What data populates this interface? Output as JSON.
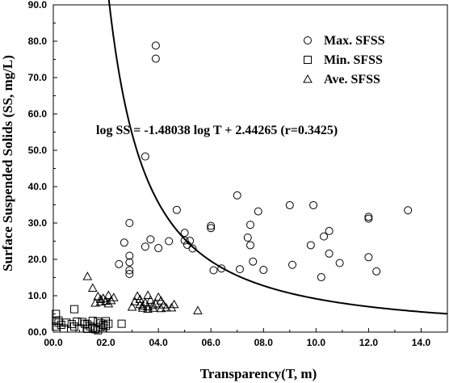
{
  "chart_data": {
    "type": "scatter",
    "xlabel": "Transparency(T, m)",
    "ylabel": "Surface Suspended Solids (SS, mg/L)",
    "xlim": [
      0,
      15
    ],
    "ylim": [
      0,
      90
    ],
    "x_ticks": [
      "00.0",
      "02.0",
      "04.0",
      "06.0",
      "08.0",
      "10.0",
      "12.0",
      "14.0"
    ],
    "y_ticks": [
      "00.0",
      "10.0",
      "20.0",
      "30.0",
      "40.0",
      "50.0",
      "60.0",
      "70.0",
      "80.0",
      "90.0"
    ],
    "grid": false,
    "legend_position": "top-right",
    "annotation": "log SS = -1.48038 log T + 2.44265 (r=0.3425)",
    "fit": {
      "slope": -1.48038,
      "intercept": 2.44265,
      "x_start": 0.1,
      "x_end": 15
    },
    "series": [
      {
        "name": "Max. SFSS",
        "marker": "circle",
        "points": [
          [
            3.9,
            78.8
          ],
          [
            3.9,
            75.2
          ],
          [
            3.5,
            48.3
          ],
          [
            7.0,
            37.6
          ],
          [
            4.7,
            33.6
          ],
          [
            2.9,
            30.0
          ],
          [
            6.0,
            29.2
          ],
          [
            6.0,
            28.6
          ],
          [
            7.5,
            29.5
          ],
          [
            7.8,
            33.2
          ],
          [
            9.0,
            34.9
          ],
          [
            9.9,
            34.9
          ],
          [
            10.5,
            27.8
          ],
          [
            10.3,
            26.3
          ],
          [
            12.0,
            31.7
          ],
          [
            12.0,
            31.2
          ],
          [
            13.5,
            33.5
          ],
          [
            2.7,
            24.6
          ],
          [
            3.7,
            25.5
          ],
          [
            4.4,
            25.0
          ],
          [
            5.0,
            27.3
          ],
          [
            5.0,
            25.2
          ],
          [
            5.2,
            25.1
          ],
          [
            5.1,
            24.0
          ],
          [
            5.3,
            23.0
          ],
          [
            4.0,
            23.1
          ],
          [
            3.5,
            23.5
          ],
          [
            2.9,
            21.0
          ],
          [
            2.9,
            19.2
          ],
          [
            2.5,
            18.7
          ],
          [
            2.9,
            17.0
          ],
          [
            2.9,
            16.0
          ],
          [
            6.1,
            17.0
          ],
          [
            6.4,
            17.5
          ],
          [
            7.1,
            17.3
          ],
          [
            7.4,
            26.0
          ],
          [
            7.5,
            23.9
          ],
          [
            7.6,
            19.4
          ],
          [
            8.0,
            17.1
          ],
          [
            9.1,
            18.5
          ],
          [
            9.8,
            23.9
          ],
          [
            10.5,
            21.6
          ],
          [
            10.9,
            19.0
          ],
          [
            10.2,
            15.1
          ],
          [
            12.0,
            20.6
          ],
          [
            12.3,
            16.7
          ]
        ]
      },
      {
        "name": "Min. SFSS",
        "marker": "square",
        "points": [
          [
            0.1,
            5.0
          ],
          [
            0.1,
            3.1
          ],
          [
            0.2,
            2.6
          ],
          [
            0.3,
            2.0
          ],
          [
            0.1,
            1.5
          ],
          [
            0.4,
            1.0
          ],
          [
            0.2,
            3.2
          ],
          [
            0.5,
            2.6
          ],
          [
            0.8,
            6.3
          ],
          [
            0.7,
            2.2
          ],
          [
            0.8,
            1.5
          ],
          [
            1.0,
            1.0
          ],
          [
            1.1,
            2.8
          ],
          [
            1.2,
            2.3
          ],
          [
            1.3,
            2.1
          ],
          [
            1.4,
            1.6
          ],
          [
            1.5,
            1.2
          ],
          [
            1.6,
            0.8
          ],
          [
            1.7,
            2.9
          ],
          [
            1.8,
            2.4
          ],
          [
            1.9,
            2.0
          ],
          [
            1.9,
            1.0
          ],
          [
            2.0,
            3.0
          ],
          [
            1.7,
            0.5
          ],
          [
            1.3,
            0.9
          ],
          [
            0.9,
            2.9
          ],
          [
            1.5,
            3.1
          ],
          [
            1.8,
            1.4
          ],
          [
            2.0,
            1.7
          ],
          [
            2.1,
            2.3
          ],
          [
            2.6,
            2.3
          ]
        ]
      },
      {
        "name": "Ave. SFSS",
        "marker": "triangle",
        "points": [
          [
            1.3,
            15.3
          ],
          [
            1.5,
            12.1
          ],
          [
            1.7,
            9.8
          ],
          [
            1.8,
            9.0
          ],
          [
            1.8,
            8.3
          ],
          [
            1.9,
            9.3
          ],
          [
            2.0,
            8.5
          ],
          [
            2.1,
            10.1
          ],
          [
            2.2,
            8.7
          ],
          [
            2.1,
            7.8
          ],
          [
            1.6,
            8.0
          ],
          [
            2.3,
            9.5
          ],
          [
            3.1,
            8.4
          ],
          [
            3.2,
            9.9
          ],
          [
            3.3,
            7.6
          ],
          [
            3.3,
            9.0
          ],
          [
            3.4,
            6.6
          ],
          [
            3.5,
            8.1
          ],
          [
            3.6,
            7.0
          ],
          [
            3.6,
            10.1
          ],
          [
            3.7,
            8.8
          ],
          [
            3.8,
            7.4
          ],
          [
            3.8,
            6.6
          ],
          [
            3.9,
            7.8
          ],
          [
            4.0,
            9.6
          ],
          [
            4.1,
            6.5
          ],
          [
            4.2,
            7.5
          ],
          [
            4.3,
            6.7
          ],
          [
            4.5,
            6.7
          ],
          [
            4.6,
            7.6
          ],
          [
            4.1,
            8.6
          ],
          [
            3.4,
            7.2
          ],
          [
            3.6,
            6.3
          ],
          [
            5.5,
            5.9
          ],
          [
            3.0,
            6.9
          ]
        ]
      }
    ]
  }
}
